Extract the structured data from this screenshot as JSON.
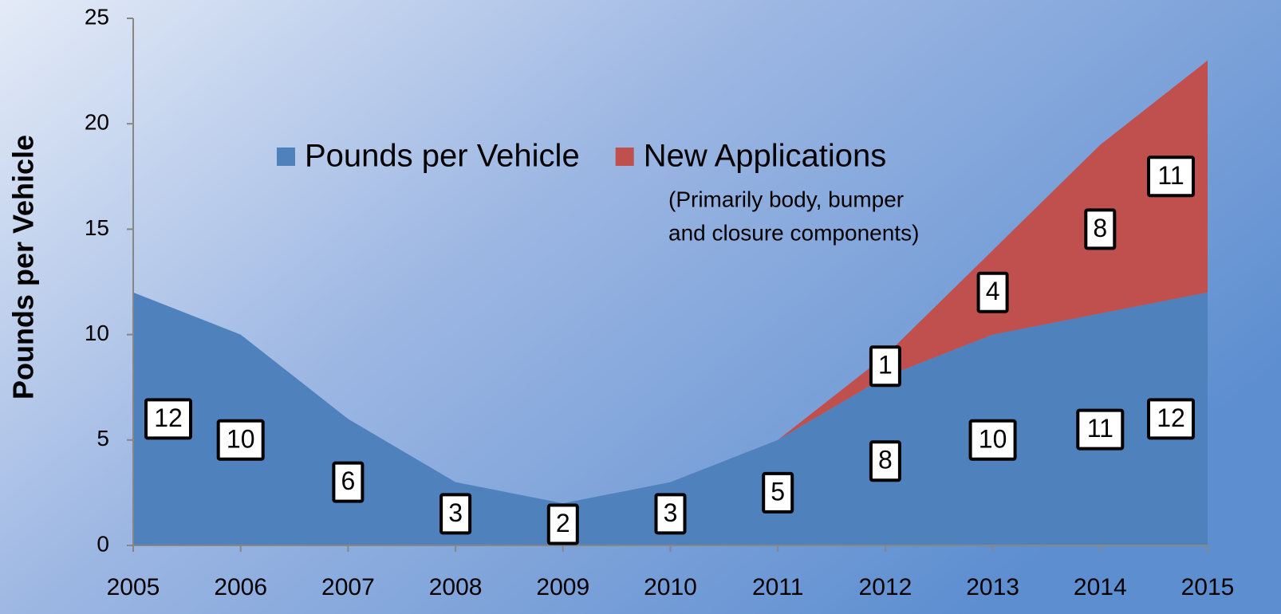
{
  "chart_data": {
    "type": "stacked_area",
    "ylabel": "Pounds per Vehicle",
    "annotation": [
      "(Primarily body, bumper",
      "and closure components)"
    ],
    "x": [
      2005,
      2006,
      2007,
      2008,
      2009,
      2010,
      2011,
      2012,
      2013,
      2014,
      2015
    ],
    "series": [
      {
        "name": "Pounds per Vehicle",
        "color": "#4f81bd",
        "values": [
          12,
          10,
          6,
          3,
          2,
          3,
          5,
          8,
          10,
          11,
          12
        ]
      },
      {
        "name": "New Applications",
        "color": "#c0504d",
        "values": [
          null,
          null,
          null,
          null,
          null,
          null,
          0,
          1,
          4,
          8,
          11
        ],
        "value_labels": [
          null,
          null,
          null,
          null,
          null,
          null,
          null,
          "1",
          "4",
          "8",
          "11"
        ]
      }
    ],
    "xlim": [
      2005,
      2015
    ],
    "xticks": [
      2005,
      2006,
      2007,
      2008,
      2009,
      2010,
      2011,
      2012,
      2013,
      2014,
      2015
    ],
    "ylim": [
      0,
      25
    ],
    "yticks": [
      0,
      5,
      10,
      15,
      20,
      25
    ]
  }
}
